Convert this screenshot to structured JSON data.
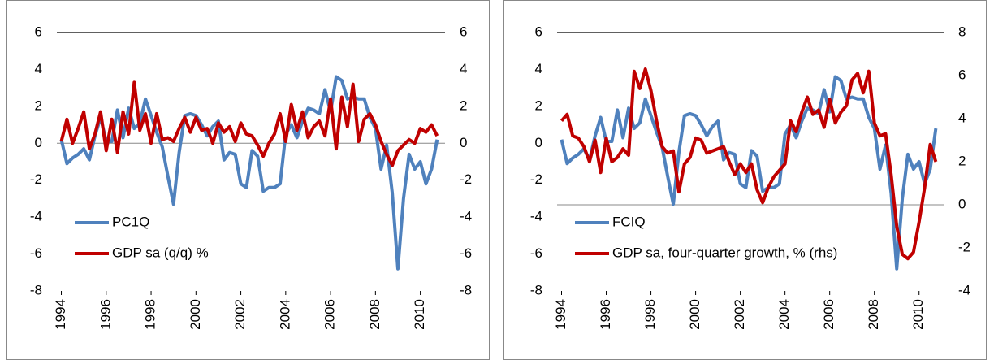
{
  "chart_data": [
    {
      "type": "line",
      "x": [
        1994,
        1994.25,
        1994.5,
        1994.75,
        1995,
        1995.25,
        1995.5,
        1995.75,
        1996,
        1996.25,
        1996.5,
        1996.75,
        1997,
        1997.25,
        1997.5,
        1997.75,
        1998,
        1998.25,
        1998.5,
        1998.75,
        1999,
        1999.25,
        1999.5,
        1999.75,
        2000,
        2000.25,
        2000.5,
        2000.75,
        2001,
        2001.25,
        2001.5,
        2001.75,
        2002,
        2002.25,
        2002.5,
        2002.75,
        2003,
        2003.25,
        2003.5,
        2003.75,
        2004,
        2004.25,
        2004.5,
        2004.75,
        2005,
        2005.25,
        2005.5,
        2005.75,
        2006,
        2006.25,
        2006.5,
        2006.75,
        2007,
        2007.25,
        2007.5,
        2007.75,
        2008,
        2008.25,
        2008.5,
        2008.75,
        2009,
        2009.25,
        2009.5,
        2009.75,
        2010,
        2010.25,
        2010.5,
        2010.75
      ],
      "series": [
        {
          "name": "PC1Q",
          "color": "#4f81bd",
          "values": [
            0.2,
            -1.1,
            -0.8,
            -0.6,
            -0.3,
            -0.9,
            0.4,
            1.4,
            0.1,
            0.1,
            1.8,
            0.3,
            1.9,
            0.8,
            1.1,
            2.4,
            1.5,
            0.6,
            -0.2,
            -1.8,
            -3.3,
            -0.5,
            1.5,
            1.6,
            1.5,
            1.0,
            0.4,
            0.9,
            1.2,
            -0.9,
            -0.5,
            -0.6,
            -2.2,
            -2.4,
            -0.4,
            -0.7,
            -2.6,
            -2.4,
            -2.4,
            -2.2,
            0.5,
            1.0,
            0.3,
            1.2,
            1.9,
            1.8,
            1.6,
            2.9,
            1.7,
            3.6,
            3.4,
            2.4,
            2.5,
            2.4,
            2.4,
            1.4,
            0.8,
            -1.4,
            -0.1,
            -2.7,
            -6.8,
            -3.0,
            -0.6,
            -1.4,
            -1.0,
            -2.2,
            -1.4,
            0.2
          ]
        },
        {
          "name": "GDP sa (q/q) %",
          "color": "#c00000",
          "values": [
            0.1,
            1.3,
            0.0,
            0.8,
            1.7,
            -0.3,
            0.5,
            1.7,
            -0.4,
            1.3,
            -0.5,
            1.7,
            0.5,
            3.3,
            0.7,
            1.6,
            0.0,
            1.6,
            0.2,
            0.3,
            0.1,
            0.8,
            1.4,
            0.6,
            1.4,
            0.7,
            0.8,
            0.0,
            1.1,
            0.6,
            0.9,
            0.1,
            1.1,
            0.5,
            0.4,
            -0.1,
            -0.7,
            0.0,
            0.5,
            1.6,
            0.1,
            2.1,
            0.7,
            1.7,
            0.3,
            0.9,
            1.2,
            0.4,
            2.4,
            -0.3,
            2.5,
            0.9,
            3.2,
            0.1,
            1.3,
            1.6,
            1.0,
            0.1,
            -0.6,
            -1.2,
            -0.4,
            -0.1,
            0.2,
            0.0,
            0.8,
            0.6,
            1.0,
            0.4
          ]
        }
      ],
      "xlim": [
        1993.8,
        2011.1
      ],
      "xticks": [
        1994,
        1996,
        1998,
        2000,
        2002,
        2004,
        2006,
        2008,
        2010
      ],
      "ylim": [
        -8,
        6
      ],
      "yticks": [
        -8,
        -6,
        -4,
        -2,
        0,
        2,
        4,
        6
      ],
      "y2lim": [
        -8,
        6
      ],
      "y2ticks": [
        -8,
        -6,
        -4,
        -2,
        0,
        2,
        4,
        6
      ],
      "baseline": 0,
      "legend": "lower left"
    },
    {
      "type": "line",
      "x": [
        1994,
        1994.25,
        1994.5,
        1994.75,
        1995,
        1995.25,
        1995.5,
        1995.75,
        1996,
        1996.25,
        1996.5,
        1996.75,
        1997,
        1997.25,
        1997.5,
        1997.75,
        1998,
        1998.25,
        1998.5,
        1998.75,
        1999,
        1999.25,
        1999.5,
        1999.75,
        2000,
        2000.25,
        2000.5,
        2000.75,
        2001,
        2001.25,
        2001.5,
        2001.75,
        2002,
        2002.25,
        2002.5,
        2002.75,
        2003,
        2003.25,
        2003.5,
        2003.75,
        2004,
        2004.25,
        2004.5,
        2004.75,
        2005,
        2005.25,
        2005.5,
        2005.75,
        2006,
        2006.25,
        2006.5,
        2006.75,
        2007,
        2007.25,
        2007.5,
        2007.75,
        2008,
        2008.25,
        2008.5,
        2008.75,
        2009,
        2009.25,
        2009.5,
        2009.75,
        2010,
        2010.25,
        2010.5,
        2010.75
      ],
      "series": [
        {
          "name": "FCIQ",
          "color": "#4f81bd",
          "values": [
            0.2,
            -1.1,
            -0.8,
            -0.6,
            -0.3,
            -0.9,
            0.4,
            1.4,
            0.1,
            0.1,
            1.8,
            0.3,
            1.9,
            0.8,
            1.1,
            2.4,
            1.5,
            0.6,
            -0.2,
            -1.8,
            -3.3,
            -0.5,
            1.5,
            1.6,
            1.5,
            1.0,
            0.4,
            0.9,
            1.2,
            -0.9,
            -0.5,
            -0.6,
            -2.2,
            -2.4,
            -0.4,
            -0.7,
            -2.6,
            -2.4,
            -2.4,
            -2.2,
            0.5,
            1.0,
            0.3,
            1.2,
            1.9,
            1.8,
            1.6,
            2.9,
            1.7,
            3.6,
            3.4,
            2.4,
            2.5,
            2.4,
            2.4,
            1.4,
            0.8,
            -1.4,
            -0.1,
            -2.7,
            -6.8,
            -3.0,
            -0.6,
            -1.4,
            -1.0,
            -2.2,
            -1.4,
            0.8
          ]
        },
        {
          "name": "GDP sa, four-quarter growth, % (rhs)",
          "color": "#c00000",
          "axis": "y2",
          "values": [
            3.9,
            4.2,
            3.2,
            3.1,
            2.7,
            2.0,
            3.0,
            1.5,
            3.1,
            2.0,
            2.2,
            2.6,
            2.3,
            6.2,
            5.4,
            6.3,
            5.3,
            3.9,
            2.7,
            2.4,
            2.5,
            0.6,
            1.9,
            2.2,
            3.1,
            3.0,
            2.4,
            2.5,
            2.6,
            2.7,
            2.0,
            1.4,
            1.9,
            1.5,
            1.9,
            0.7,
            0.1,
            0.8,
            1.3,
            1.6,
            1.9,
            3.9,
            3.4,
            4.3,
            5.0,
            4.2,
            4.4,
            3.6,
            4.9,
            3.8,
            4.3,
            4.6,
            5.8,
            6.1,
            5.2,
            6.2,
            3.8,
            3.2,
            3.3,
            1.4,
            -1.0,
            -2.3,
            -2.5,
            -2.2,
            -0.8,
            0.8,
            2.8,
            2.0
          ]
        }
      ],
      "xlim": [
        1993.8,
        2011.1
      ],
      "xticks": [
        1994,
        1996,
        1998,
        2000,
        2002,
        2004,
        2006,
        2008,
        2010
      ],
      "ylim": [
        -8,
        6
      ],
      "yticks": [
        -8,
        -6,
        -4,
        -2,
        0,
        2,
        4,
        6
      ],
      "y2lim": [
        -4,
        8
      ],
      "y2ticks": [
        -4,
        -2,
        0,
        2,
        4,
        6,
        8
      ],
      "baseline": 0,
      "baseline_axis": "y2",
      "legend": "lower left"
    }
  ]
}
